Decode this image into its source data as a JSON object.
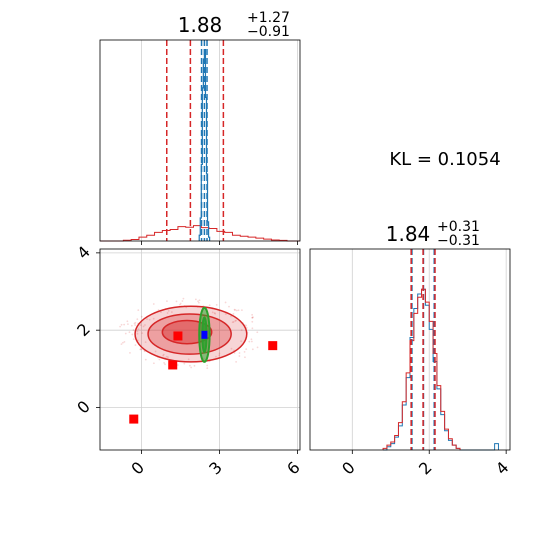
{
  "chart_data": {
    "type": "corner",
    "colors": {
      "red": "#d62728",
      "blue": "#1f77b4",
      "green": "#2ca02c",
      "marker_red": "#ff0000",
      "marker_blue": "#0000ff"
    },
    "panels": {
      "top_left": {
        "type": "histogram",
        "title_main": "1.88",
        "title_sup": "+1.27",
        "title_sub": "−0.91",
        "xlim": [
          -1.6,
          6.1
        ],
        "red_quantiles": [
          0.97,
          1.88,
          3.15
        ],
        "blue_quantiles": [
          2.31,
          2.42,
          2.52
        ],
        "red_hist": {
          "edges": [
            -1.6,
            -1.3,
            -1.0,
            -0.7,
            -0.4,
            -0.1,
            0.2,
            0.5,
            0.8,
            1.1,
            1.4,
            1.7,
            2.0,
            2.3,
            2.6,
            2.9,
            3.2,
            3.5,
            3.8,
            4.1,
            4.4,
            4.7,
            5.0,
            5.3,
            5.6,
            5.9,
            6.1
          ],
          "values": [
            0,
            0,
            0,
            0.004,
            0.008,
            0.02,
            0.03,
            0.045,
            0.055,
            0.06,
            0.075,
            0.072,
            0.08,
            0.07,
            0.065,
            0.05,
            0.045,
            0.03,
            0.025,
            0.02,
            0.015,
            0.01,
            0.005,
            0.003,
            0,
            0
          ]
        },
        "blue_hist": {
          "edges": [
            2.22,
            2.26,
            2.3,
            2.34,
            2.38,
            2.42,
            2.46,
            2.5,
            2.54,
            2.58,
            2.62
          ],
          "values": [
            0.03,
            0.12,
            0.4,
            0.8,
            0.95,
            1.0,
            0.75,
            0.35,
            0.1,
            0.02
          ]
        },
        "hist_ylim": [
          0,
          1.05
        ],
        "xticks": [
          0,
          3,
          6
        ]
      },
      "bottom_left": {
        "type": "2d_contour",
        "xlim": [
          -1.6,
          6.1
        ],
        "ylim": [
          -1.1,
          4.1
        ],
        "xticks": [
          0,
          3,
          6
        ],
        "yticks": [
          0,
          2,
          4
        ],
        "xtick_labels": [
          "0",
          "3",
          "6"
        ],
        "ytick_labels": [
          "0",
          "2",
          "4"
        ],
        "red_contours": [
          {
            "cx": 1.9,
            "cy": 1.9,
            "rx": 2.15,
            "ry": 0.72
          },
          {
            "cx": 1.85,
            "cy": 1.9,
            "rx": 1.6,
            "ry": 0.52
          },
          {
            "cx": 1.75,
            "cy": 1.95,
            "rx": 0.95,
            "ry": 0.3
          }
        ],
        "green_contours": [
          {
            "cx": 2.42,
            "cy": 1.88,
            "rx": 0.2,
            "ry": 0.7
          },
          {
            "cx": 2.42,
            "cy": 1.88,
            "rx": 0.08,
            "ry": 0.45
          }
        ],
        "red_markers": [
          {
            "x": -0.3,
            "y": -0.3
          },
          {
            "x": 1.4,
            "y": 1.85
          },
          {
            "x": 1.2,
            "y": 1.1
          },
          {
            "x": 5.05,
            "y": 1.6
          }
        ],
        "blue_markers": [
          {
            "x": 2.42,
            "y": 1.88
          }
        ]
      },
      "bottom_right": {
        "type": "histogram",
        "title_main": "1.84",
        "title_sup": "+0.31",
        "title_sub": "−0.31",
        "xlim": [
          -1.1,
          4.1
        ],
        "xticks": [
          0,
          2,
          4
        ],
        "xtick_labels": [
          "0",
          "2",
          "4"
        ],
        "red_quantiles": [
          1.53,
          1.84,
          2.15
        ],
        "blue_quantiles": [
          1.55,
          1.85,
          2.13
        ],
        "red_hist": {
          "edges": [
            0.8,
            0.9,
            1.0,
            1.1,
            1.2,
            1.3,
            1.4,
            1.5,
            1.6,
            1.7,
            1.8,
            1.9,
            2.0,
            2.1,
            2.2,
            2.3,
            2.4,
            2.5,
            2.6,
            2.7,
            2.8
          ],
          "values": [
            0.01,
            0.03,
            0.05,
            0.09,
            0.17,
            0.3,
            0.48,
            0.68,
            0.85,
            0.95,
            1.0,
            0.92,
            0.8,
            0.6,
            0.4,
            0.24,
            0.13,
            0.07,
            0.03,
            0.01
          ]
        },
        "blue_hist": {
          "edges": [
            0.8,
            0.9,
            1.0,
            1.1,
            1.2,
            1.3,
            1.4,
            1.5,
            1.6,
            1.7,
            1.8,
            1.9,
            2.0,
            2.1,
            2.2,
            2.3,
            2.4,
            2.5,
            2.6,
            2.7,
            2.8,
            2.9,
            3.0,
            3.1,
            3.2,
            3.3,
            3.4,
            3.5,
            3.6,
            3.7,
            3.8
          ],
          "values": [
            0.0,
            0.02,
            0.04,
            0.08,
            0.15,
            0.28,
            0.45,
            0.7,
            0.88,
            0.97,
            1.0,
            0.9,
            0.75,
            0.55,
            0.38,
            0.22,
            0.12,
            0.06,
            0.03,
            0.01,
            0.0,
            0.0,
            0.0,
            0.0,
            0.0,
            0.0,
            0.0,
            0.0,
            0.0,
            0.04
          ]
        },
        "hist_ylim": [
          0,
          1.25
        ]
      }
    },
    "annotation": "KL = 0.1054"
  }
}
